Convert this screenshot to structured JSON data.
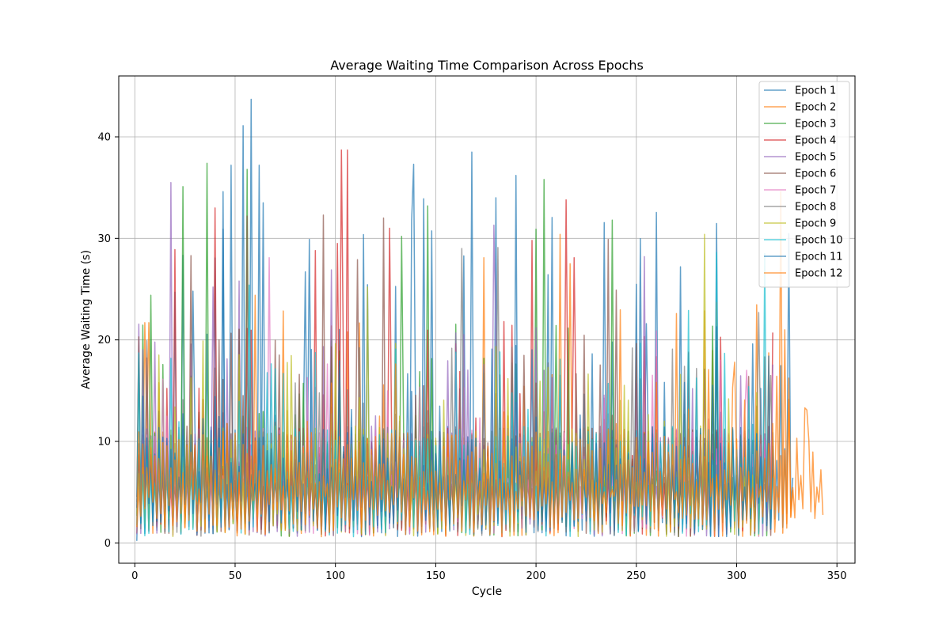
{
  "chart_data": {
    "type": "line",
    "title": "Average Waiting Time Comparison Across Epochs",
    "xlabel": "Cycle",
    "ylabel": "Average Waiting Time (s)",
    "xlim": [
      -8,
      359
    ],
    "ylim": [
      -2,
      46
    ],
    "xticks": [
      0,
      50,
      100,
      150,
      200,
      250,
      300,
      350
    ],
    "yticks": [
      0,
      10,
      20,
      30,
      40
    ],
    "grid": true,
    "legend_position": "top-right",
    "line_alpha": 0.7,
    "series": [
      {
        "name": "Epoch 1",
        "color": "#1f77b4",
        "x_start": 1,
        "length": 328,
        "seed": 11,
        "base_level": 5.5,
        "spike_probability": 0.24,
        "spike_max": 35,
        "peaks": [
          [
            1,
            0.2
          ],
          [
            20,
            24.7
          ],
          [
            29,
            24.8
          ],
          [
            44,
            34.6
          ],
          [
            48,
            37.2
          ],
          [
            54,
            41.1
          ],
          [
            58,
            43.7
          ],
          [
            62,
            37.2
          ],
          [
            64,
            33.5
          ],
          [
            85,
            26.7
          ],
          [
            87,
            29.9
          ],
          [
            139,
            37.3
          ],
          [
            144,
            33.9
          ],
          [
            168,
            38.5
          ],
          [
            180,
            34.0
          ],
          [
            190,
            36.2
          ],
          [
            255,
            21.6
          ]
        ]
      },
      {
        "name": "Epoch 2",
        "color": "#ff7f0e",
        "x_start": 1,
        "length": 328,
        "seed": 23,
        "base_level": 5.0,
        "spike_probability": 0.18,
        "spike_max": 24,
        "peaks": [
          [
            5,
            21.7
          ],
          [
            7,
            21.7
          ],
          [
            60,
            24.4
          ],
          [
            174,
            28.1
          ],
          [
            212,
            30.4
          ],
          [
            217,
            27.5
          ]
        ]
      },
      {
        "name": "Epoch 3",
        "color": "#2ca02c",
        "x_start": 1,
        "length": 318,
        "seed": 37,
        "base_level": 5.5,
        "spike_probability": 0.18,
        "spike_max": 22,
        "peaks": [
          [
            8,
            24.4
          ],
          [
            24,
            35.1
          ],
          [
            36,
            37.4
          ],
          [
            56,
            36.8
          ],
          [
            133,
            30.2
          ],
          [
            146,
            33.2
          ],
          [
            200,
            30.9
          ],
          [
            204,
            35.8
          ],
          [
            238,
            31.8
          ]
        ]
      },
      {
        "name": "Epoch 4",
        "color": "#d62728",
        "x_start": 1,
        "length": 318,
        "seed": 41,
        "base_level": 5.5,
        "spike_probability": 0.18,
        "spike_max": 22,
        "peaks": [
          [
            20,
            28.9
          ],
          [
            40,
            33.0
          ],
          [
            90,
            28.8
          ],
          [
            101,
            29.5
          ],
          [
            103,
            38.7
          ],
          [
            106,
            38.7
          ],
          [
            127,
            31.0
          ],
          [
            198,
            29.8
          ],
          [
            215,
            33.8
          ],
          [
            219,
            28.1
          ]
        ]
      },
      {
        "name": "Epoch 5",
        "color": "#9467bd",
        "x_start": 1,
        "length": 318,
        "seed": 53,
        "base_level": 5.5,
        "spike_probability": 0.17,
        "spike_max": 22,
        "peaks": [
          [
            18,
            35.5
          ],
          [
            39,
            25.2
          ],
          [
            52,
            25.8
          ],
          [
            98,
            26.9
          ],
          [
            179,
            31.3
          ],
          [
            254,
            28.2
          ]
        ]
      },
      {
        "name": "Epoch 6",
        "color": "#8c564b",
        "x_start": 1,
        "length": 318,
        "seed": 67,
        "base_level": 5.5,
        "spike_probability": 0.17,
        "spike_max": 22,
        "peaks": [
          [
            2,
            20.3
          ],
          [
            28,
            28.3
          ],
          [
            56,
            32.2
          ],
          [
            94,
            32.3
          ],
          [
            111,
            27.9
          ],
          [
            124,
            32.0
          ],
          [
            236,
            29.9
          ],
          [
            240,
            24.9
          ]
        ]
      },
      {
        "name": "Epoch 7",
        "color": "#e377c2",
        "x_start": 1,
        "length": 318,
        "seed": 71,
        "base_level": 5.5,
        "spike_probability": 0.16,
        "spike_max": 21,
        "peaks": [
          [
            67,
            28.1
          ],
          [
            292,
            18.0
          ],
          [
            305,
            17.0
          ]
        ]
      },
      {
        "name": "Epoch 8",
        "color": "#7f7f7f",
        "x_start": 1,
        "length": 318,
        "seed": 83,
        "base_level": 5.5,
        "spike_probability": 0.16,
        "spike_max": 21,
        "peaks": [
          [
            163,
            29.0
          ],
          [
            181,
            29.1
          ],
          [
            248,
            19.2
          ],
          [
            268,
            19.1
          ],
          [
            311,
            22.7
          ],
          [
            317,
            16.5
          ]
        ]
      },
      {
        "name": "Epoch 9",
        "color": "#bcbd22",
        "x_start": 1,
        "length": 312,
        "seed": 97,
        "base_level": 5.5,
        "spike_probability": 0.15,
        "spike_max": 20,
        "peaks": [
          [
            12,
            18.5
          ],
          [
            116,
            25.2
          ],
          [
            284,
            30.4
          ],
          [
            310,
            14.8
          ]
        ]
      },
      {
        "name": "Epoch 10",
        "color": "#17becf",
        "x_start": 1,
        "length": 318,
        "seed": 103,
        "base_level": 5.5,
        "spike_probability": 0.15,
        "spike_max": 20,
        "peaks": [
          [
            57,
            25.4
          ],
          [
            276,
            22.9
          ],
          [
            290,
            28.6
          ],
          [
            314,
            28.5
          ]
        ]
      },
      {
        "name": "Epoch 11",
        "color": "#1f77b4",
        "x_start": 1,
        "length": 318,
        "seed": 113,
        "base_level": 5.5,
        "spike_probability": 0.15,
        "spike_max": 20,
        "peaks": [
          [
            44,
            30.9
          ],
          [
            290,
            21.3
          ]
        ]
      },
      {
        "name": "Epoch 12",
        "color": "#ff7f0e",
        "x_start": 1,
        "length": 343,
        "seed": 127,
        "base_level": 5.0,
        "spike_probability": 0.13,
        "spike_max": 18,
        "peaks": [
          [
            299,
            17.8
          ],
          [
            316,
            9.8
          ],
          [
            322,
            34.6
          ],
          [
            324,
            21.0
          ],
          [
            334,
            13.3
          ],
          [
            335,
            13.1
          ],
          [
            340,
            5.5
          ],
          [
            342,
            7.2
          ],
          [
            344,
            4.4
          ]
        ]
      }
    ]
  }
}
